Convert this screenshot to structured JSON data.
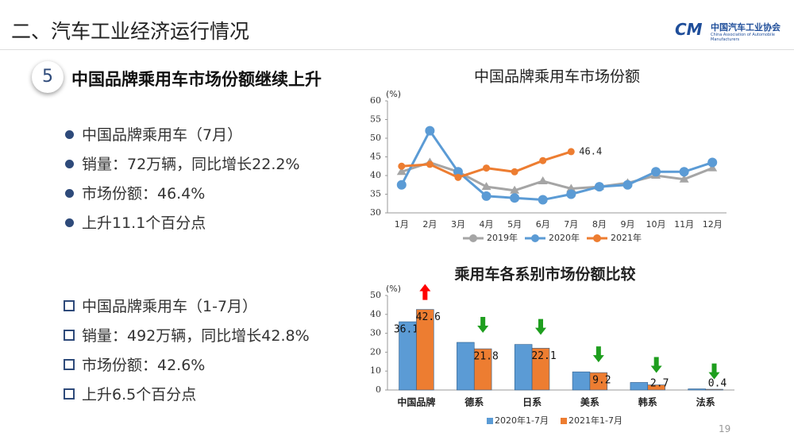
{
  "header": {
    "title": "二、汽车工业经济运行情况",
    "org": "中国汽车工业协会",
    "org_en": "China Association of Automobile Manufacturers"
  },
  "section": {
    "number": "5",
    "title": "中国品牌乘用车市场份额继续上升"
  },
  "bullets_month": [
    "中国品牌乘用车（7月）",
    "销量：72万辆，同比增长22.2%",
    "市场份额：46.4%",
    "上升11.1个百分点"
  ],
  "bullets_ytd": [
    "中国品牌乘用车（1-7月）",
    "销量：492万辆，同比增长42.8%",
    "市场份额：42.6%",
    "上升6.5个百分点"
  ],
  "page_number": "19",
  "chart_data": [
    {
      "type": "line",
      "title": "中国品牌乘用车市场份额",
      "y_unit": "(%)",
      "categories": [
        "1月",
        "2月",
        "3月",
        "4月",
        "5月",
        "6月",
        "7月",
        "8月",
        "9月",
        "10月",
        "11月",
        "12月"
      ],
      "series": [
        {
          "name": "2019年",
          "color": "#a5a5a5",
          "values": [
            41,
            43.5,
            41,
            37,
            36,
            38.5,
            36.5,
            37,
            38,
            40,
            39,
            42
          ]
        },
        {
          "name": "2020年",
          "color": "#5b9bd5",
          "values": [
            37.5,
            52,
            41,
            34.5,
            34,
            33.5,
            35,
            37,
            37.5,
            41,
            41,
            43.5
          ]
        },
        {
          "name": "2021年",
          "color": "#ed7d31",
          "values": [
            42.5,
            43,
            39.5,
            42,
            41,
            44,
            46.4,
            null,
            null,
            null,
            null,
            null
          ],
          "show_last_value": true
        }
      ],
      "ylim": [
        30,
        60
      ],
      "yticks": [
        30,
        35,
        40,
        45,
        50,
        55,
        60
      ],
      "grid": false
    },
    {
      "type": "bar",
      "title": "乘用车各系别市场份额比较",
      "y_unit": "(%)",
      "categories": [
        "中国品牌",
        "德系",
        "日系",
        "美系",
        "韩系",
        "法系"
      ],
      "series": [
        {
          "name": "2020年1-7月",
          "color": "#5b9bd5",
          "values": [
            36.1,
            25.2,
            24.1,
            9.6,
            4.0,
            0.6
          ],
          "value_labels": [
            "36.1",
            null,
            null,
            null,
            null,
            null
          ]
        },
        {
          "name": "2021年1-7月",
          "color": "#ed7d31",
          "values": [
            42.6,
            21.8,
            22.1,
            9.2,
            2.7,
            0.4
          ],
          "value_labels": [
            "42.6",
            "21.8",
            "22.1",
            "9.2",
            "2.7",
            "0.4"
          ]
        }
      ],
      "ylim": [
        0,
        50
      ],
      "yticks": [
        0,
        10,
        20,
        30,
        40,
        50
      ],
      "up_color": "#ff0000",
      "down_color": "#1e9e1e"
    }
  ]
}
